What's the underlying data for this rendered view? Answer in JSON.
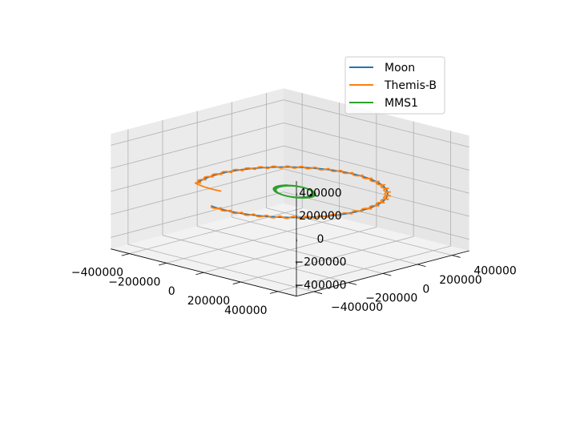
{
  "chart_data": {
    "type": "line3d",
    "title": "",
    "xlabel": "",
    "ylabel": "",
    "zlabel": "",
    "xlim": [
      -500000,
      500000
    ],
    "ylim": [
      -500000,
      500000
    ],
    "zlim": [
      -500000,
      500000
    ],
    "xticks": [
      -400000,
      -200000,
      0,
      200000,
      400000
    ],
    "yticks": [
      -400000,
      -200000,
      0,
      200000,
      400000
    ],
    "zticks": [
      -400000,
      -200000,
      0,
      200000,
      400000
    ],
    "x_tick_labels": [
      "−400000",
      "−200000",
      "0",
      "200000",
      "400000"
    ],
    "y_tick_labels": [
      "−400000",
      "−200000",
      "0",
      "200000",
      "400000"
    ],
    "z_tick_labels": [
      "−400000",
      "−200000",
      "0",
      "200000",
      "400000"
    ],
    "grid": true,
    "legend_position": "top-right",
    "series": [
      {
        "name": "Moon",
        "color": "#1f77b4",
        "description": "near-circular orbit, radius ~385000, ~0.85 revolution, small z ~0"
      },
      {
        "name": "Themis-B",
        "color": "#ff7f0e",
        "description": "orbit tracking the Moon's path with small periodic wiggles, ending slightly inward"
      },
      {
        "name": "MMS1",
        "color": "#2ca02c",
        "description": "repeated tight elliptical loops near Earth (x ~ -80000..+100000, y ~ -50000..+60000)"
      }
    ]
  }
}
